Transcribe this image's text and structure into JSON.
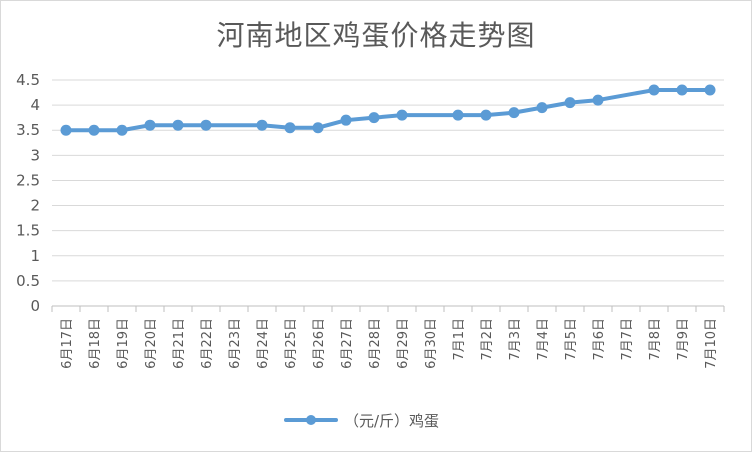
{
  "chart_data": {
    "type": "line",
    "title": "河南地区鸡蛋价格走势图",
    "xlabel": "",
    "ylabel": "",
    "ylim": [
      0,
      4.5
    ],
    "yticks": [
      "0",
      "0.5",
      "1",
      "1.5",
      "2",
      "2.5",
      "3",
      "3.5",
      "4",
      "4.5"
    ],
    "grid": true,
    "legend_position": "bottom",
    "series_color": "#5b9bd5",
    "categories": [
      "6月17日",
      "6月18日",
      "6月19日",
      "6月20日",
      "6月21日",
      "6月22日",
      "6月23日",
      "6月24日",
      "6月25日",
      "6月26日",
      "6月27日",
      "6月28日",
      "6月29日",
      "6月30日",
      "7月1日",
      "7月2日",
      "7月3日",
      "7月4日",
      "7月5日",
      "7月6日",
      "7月7日",
      "7月8日",
      "7月9日",
      "7月10日"
    ],
    "series": [
      {
        "name": "（元/斤）鸡蛋",
        "values": [
          3.5,
          3.5,
          3.5,
          3.6,
          3.6,
          3.6,
          null,
          3.6,
          3.55,
          3.55,
          3.7,
          3.75,
          3.8,
          null,
          3.8,
          3.8,
          3.85,
          3.95,
          4.05,
          4.1,
          null,
          4.3,
          4.3,
          4.3
        ]
      }
    ]
  }
}
